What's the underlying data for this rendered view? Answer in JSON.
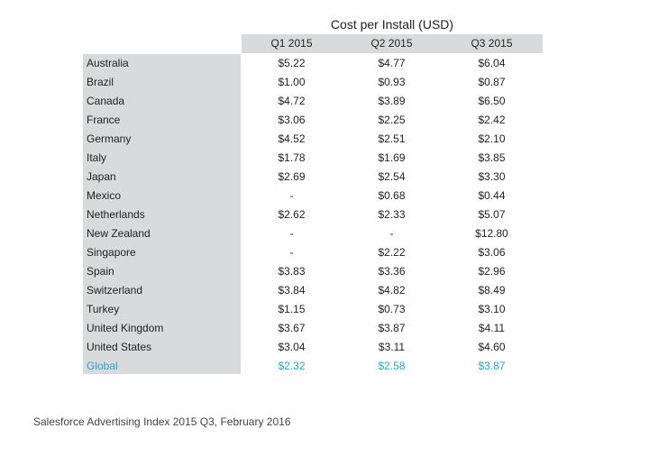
{
  "chart_data": {
    "type": "table",
    "title": "Cost per Install (USD)",
    "columns": [
      "Q1 2015",
      "Q2 2015",
      "Q3 2015"
    ],
    "rows": [
      {
        "label": "Australia",
        "values": [
          "$5.22",
          "$4.77",
          "$6.04"
        ]
      },
      {
        "label": "Brazil",
        "values": [
          "$1.00",
          "$0.93",
          "$0.87"
        ]
      },
      {
        "label": "Canada",
        "values": [
          "$4.72",
          "$3.89",
          "$6.50"
        ]
      },
      {
        "label": "France",
        "values": [
          "$3.06",
          "$2.25",
          "$2.42"
        ]
      },
      {
        "label": "Germany",
        "values": [
          "$4.52",
          "$2.51",
          "$2.10"
        ]
      },
      {
        "label": "Italy",
        "values": [
          "$1.78",
          "$1.69",
          "$3.85"
        ]
      },
      {
        "label": "Japan",
        "values": [
          "$2.69",
          "$2.54",
          "$3.30"
        ]
      },
      {
        "label": "Mexico",
        "values": [
          "-",
          "$0.68",
          "$0.44"
        ]
      },
      {
        "label": "Netherlands",
        "values": [
          "$2.62",
          "$2.33",
          "$5.07"
        ]
      },
      {
        "label": "New Zealand",
        "values": [
          "-",
          "-",
          "$12.80"
        ]
      },
      {
        "label": "Singapore",
        "values": [
          "-",
          "$2.22",
          "$3.06"
        ]
      },
      {
        "label": "Spain",
        "values": [
          "$3.83",
          "$3.36",
          "$2.96"
        ]
      },
      {
        "label": "Switzerland",
        "values": [
          "$3.84",
          "$4.82",
          "$8.49"
        ]
      },
      {
        "label": "Turkey",
        "values": [
          "$1.15",
          "$0.73",
          "$3.10"
        ]
      },
      {
        "label": "United Kingdom",
        "values": [
          "$3.67",
          "$3.87",
          "$4.11"
        ]
      },
      {
        "label": "United States",
        "values": [
          "$3.04",
          "$3.11",
          "$4.60"
        ]
      },
      {
        "label": "Global",
        "values": [
          "$2.32",
          "$2.58",
          "$3.87"
        ],
        "highlight": true
      }
    ],
    "colors": {
      "header_bg": "#d9dadb",
      "highlight": "#2aa6d8"
    }
  },
  "source": "Salesforce Advertising Index 2015 Q3, February 2016"
}
